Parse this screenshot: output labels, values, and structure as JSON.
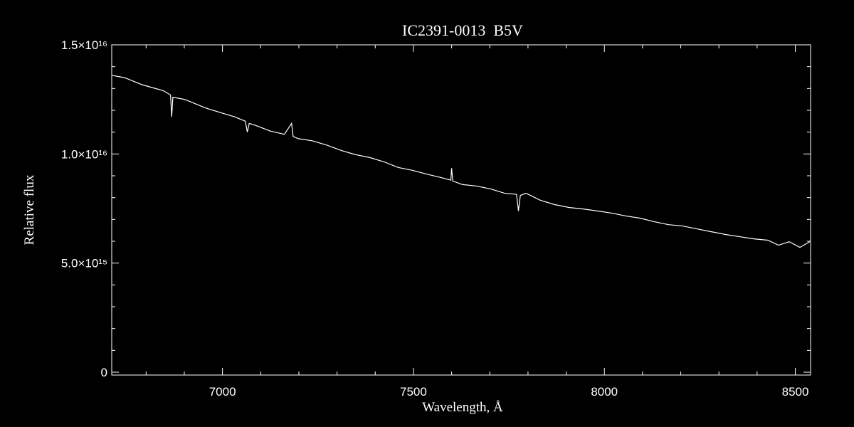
{
  "chart_data": {
    "type": "line",
    "title": "IC2391-0013  B5V",
    "xlabel": "Wavelength, Å",
    "ylabel": "Relative flux",
    "xlim": [
      6710,
      8540
    ],
    "ylim": [
      -130000000000000.0,
      1.5e+16
    ],
    "xticks": [
      7000,
      7500,
      8000,
      8500
    ],
    "yticks": [
      0,
      {
        "value": 5000000000000000.0,
        "label": "5.0×10¹⁵"
      },
      {
        "value": 1e+16,
        "label": "1.0×10¹⁶"
      },
      {
        "value": 1.5e+16,
        "label": "1.5×10¹⁶"
      }
    ],
    "xminorticks": [
      6800,
      6900,
      7100,
      7200,
      7300,
      7400,
      7600,
      7700,
      7800,
      7900,
      8100,
      8200,
      8300,
      8400
    ],
    "yminorticks": [
      1000000000000000.0,
      2000000000000000.0,
      3000000000000000.0,
      4000000000000000.0,
      6000000000000000.0,
      7000000000000000.0,
      8000000000000000.0,
      9000000000000000.0,
      1.1e+16,
      1.2e+16,
      1.3e+16,
      1.4e+16
    ],
    "x": [
      6710,
      6743,
      6790,
      6845,
      6864,
      6867,
      6870,
      6901,
      6957,
      6994,
      7032,
      7060,
      7065,
      7070,
      7088,
      7125,
      7162,
      7181,
      7185,
      7199,
      7236,
      7274,
      7311,
      7348,
      7385,
      7423,
      7460,
      7497,
      7534,
      7572,
      7598,
      7600,
      7603,
      7628,
      7665,
      7702,
      7739,
      7770,
      7775,
      7780,
      7795,
      7832,
      7870,
      7907,
      7944,
      7981,
      8019,
      8056,
      8093,
      8130,
      8168,
      8205,
      8242,
      8279,
      8317,
      8354,
      8391,
      8428,
      8456,
      8484,
      8512,
      8538
    ],
    "series": [
      {
        "name": "flux",
        "color": "#ffffff",
        "values": [
          1.36e+16,
          1.35e+16,
          1.317e+16,
          1.29e+16,
          1.27e+16,
          1.17e+16,
          1.26e+16,
          1.25e+16,
          1.21e+16,
          1.19e+16,
          1.17e+16,
          1.15e+16,
          1.1e+16,
          1.14e+16,
          1.13e+16,
          1.105e+16,
          1.09e+16,
          1.14e+16,
          1.08e+16,
          1.07e+16,
          1.06e+16,
          1.04e+16,
          1.016e+16,
          9970000000000000.0,
          9840000000000000.0,
          9640000000000000.0,
          9380000000000000.0,
          9250000000000000.0,
          9080000000000000.0,
          8920000000000000.0,
          8800000000000000.0,
          9350000000000000.0,
          8760000000000000.0,
          8600000000000000.0,
          8530000000000000.0,
          8400000000000000.0,
          8200000000000000.0,
          8150000000000000.0,
          7390000000000000.0,
          8100000000000000.0,
          8200000000000000.0,
          7880000000000000.0,
          7680000000000000.0,
          7550000000000000.0,
          7480000000000000.0,
          7390000000000000.0,
          7290000000000000.0,
          7160000000000000.0,
          7060000000000000.0,
          6900000000000000.0,
          6760000000000000.0,
          6700000000000000.0,
          6570000000000000.0,
          6440000000000000.0,
          6310000000000000.0,
          6210000000000000.0,
          6110000000000000.0,
          6050000000000000.0,
          5820000000000000.0,
          5980000000000000.0,
          5720000000000000.0,
          5980000000000000.0
        ]
      }
    ]
  }
}
